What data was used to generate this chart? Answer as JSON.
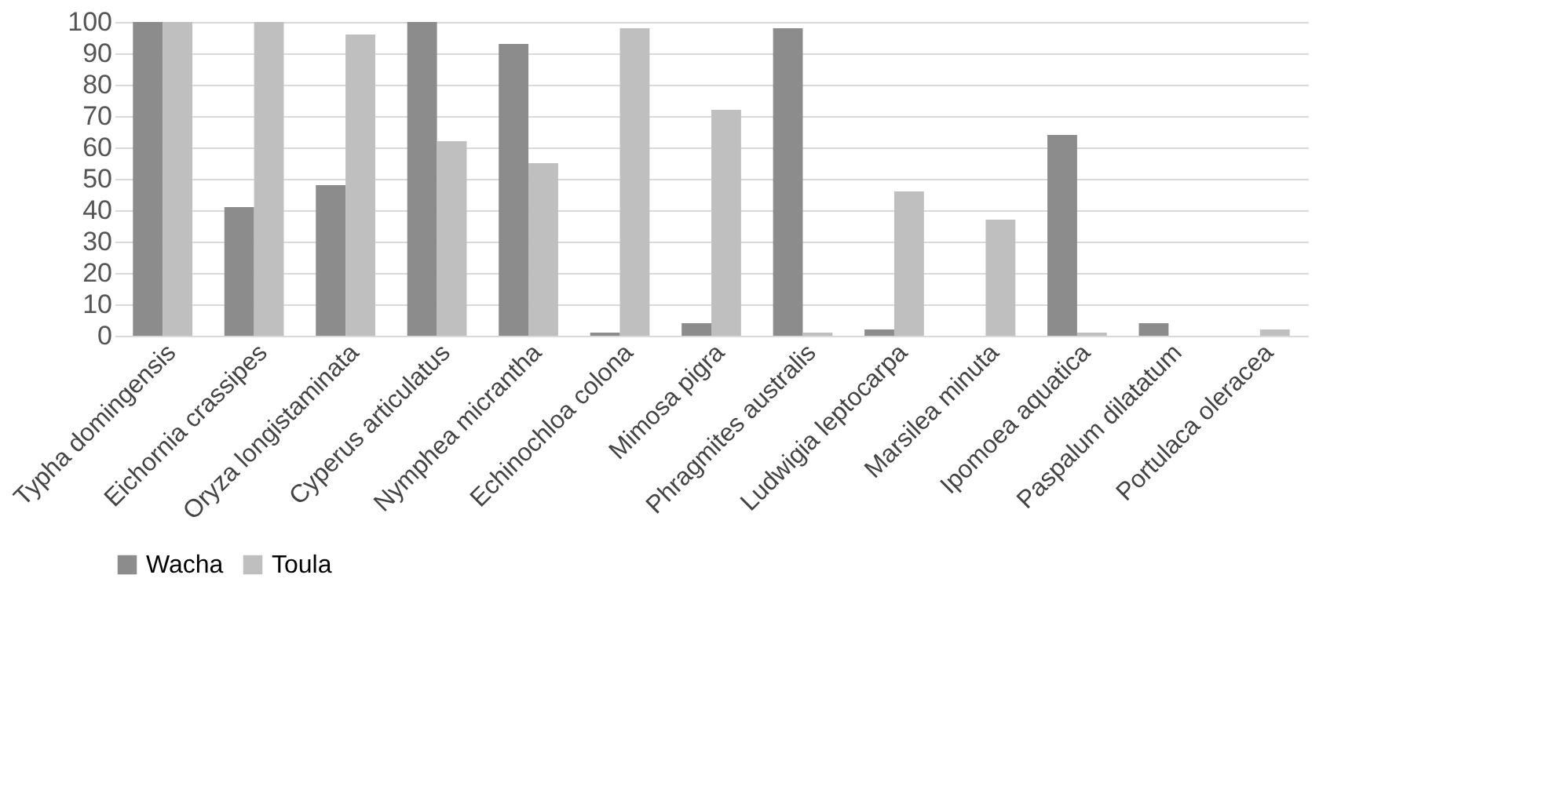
{
  "chart_data": {
    "type": "bar",
    "categories": [
      "Typha domingensis",
      "Eichornia crassipes",
      "Oryza longistaminata",
      "Cyperus articulatus",
      "Nymphea micrantha",
      "Echinochloa colona",
      "Mimosa pigra",
      "Phragmites australis",
      "Ludwigia leptocarpa",
      "Marsilea minuta",
      "Ipomoea aquatica",
      "Paspalum dilatatum",
      "Portulaca oleracea"
    ],
    "series": [
      {
        "name": "Wacha",
        "color": "#8c8c8c",
        "values": [
          100,
          41,
          48,
          100,
          93,
          1,
          4,
          98,
          2,
          0,
          64,
          4,
          0
        ]
      },
      {
        "name": "Toula",
        "color": "#bfbfbf",
        "values": [
          100,
          100,
          96,
          62,
          55,
          98,
          72,
          1,
          46,
          37,
          1,
          0,
          2
        ]
      }
    ],
    "ylim": [
      0,
      100
    ],
    "yticks": [
      0,
      10,
      20,
      30,
      40,
      50,
      60,
      70,
      80,
      90,
      100
    ],
    "grid": "y",
    "legend": "bottom"
  }
}
